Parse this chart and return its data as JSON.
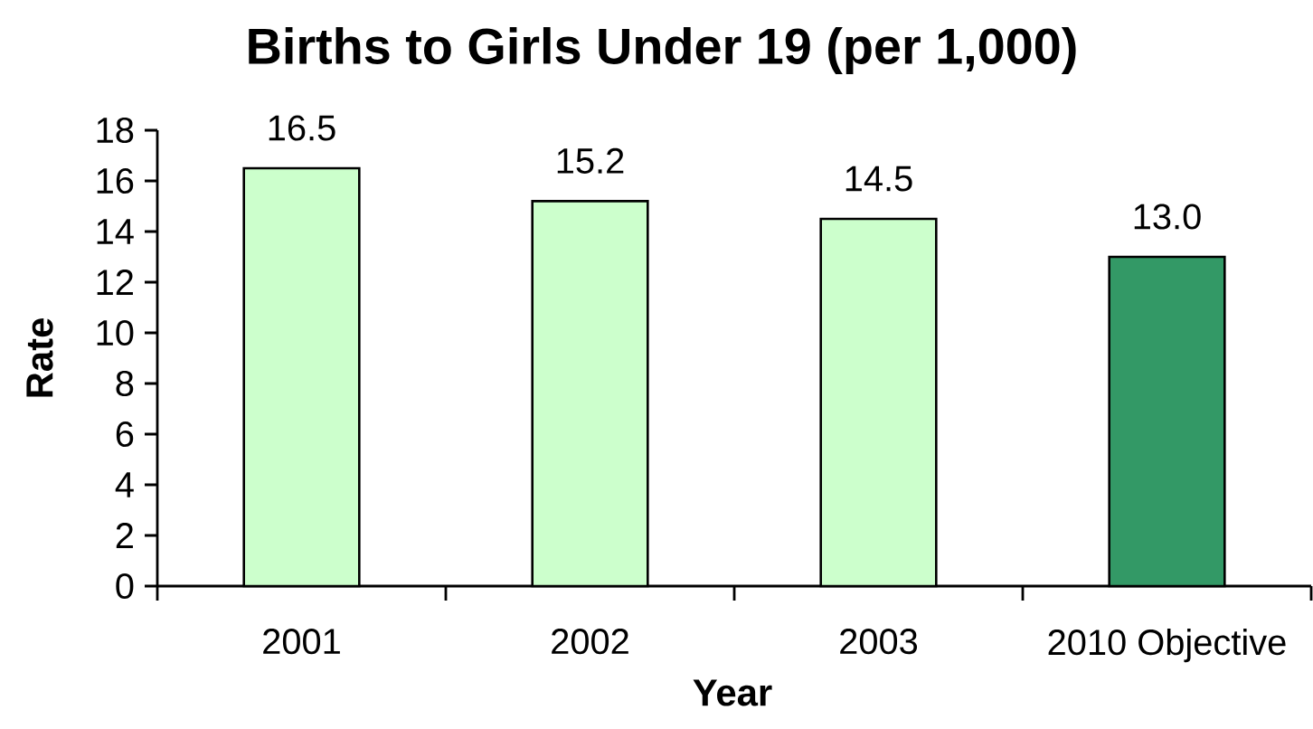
{
  "chart_data": {
    "type": "bar",
    "title": "Births to Girls Under 19 (per 1,000)",
    "xlabel": "Year",
    "ylabel": "Rate",
    "categories": [
      "2001",
      "2002",
      "2003",
      "2010 Objective"
    ],
    "values": [
      16.5,
      15.2,
      14.5,
      13.0
    ],
    "colors": [
      "#ccffcc",
      "#ccffcc",
      "#ccffcc",
      "#339966"
    ],
    "value_labels": [
      "16.5",
      "15.2",
      "14.5",
      "13.0"
    ],
    "ylim": [
      0,
      18
    ],
    "yticks": [
      0,
      2,
      4,
      6,
      8,
      10,
      12,
      14,
      16,
      18
    ]
  }
}
